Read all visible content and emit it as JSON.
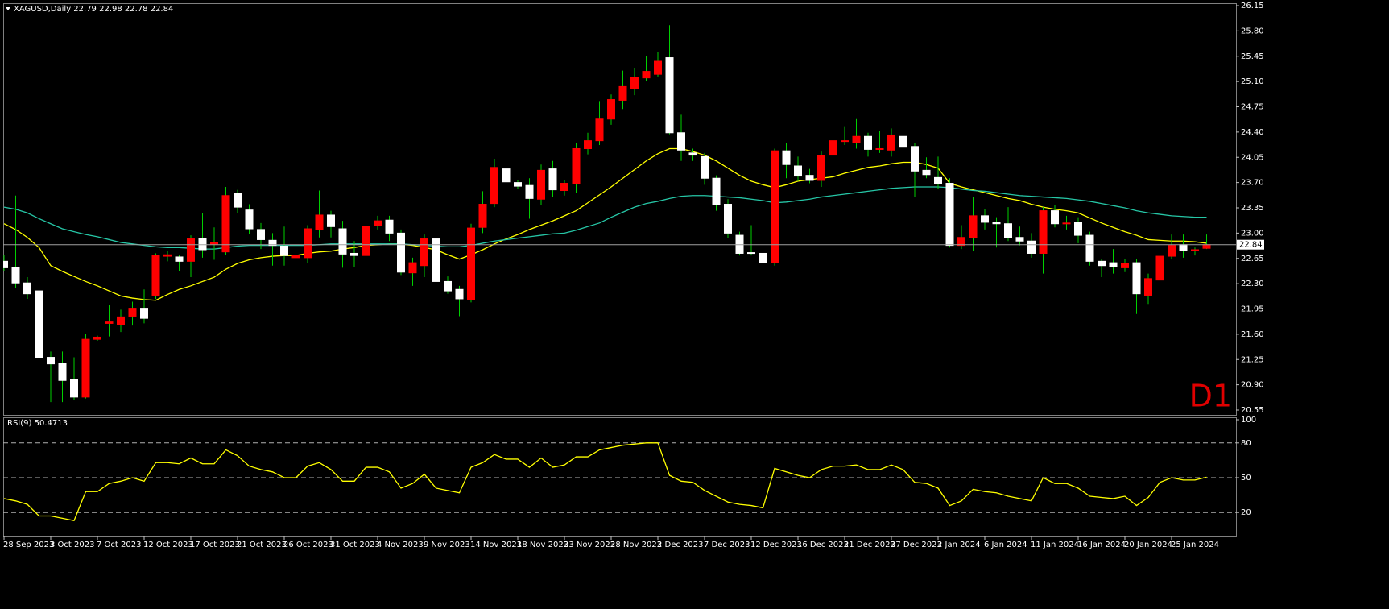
{
  "chart_data": [
    {
      "type": "candlestick",
      "title": "XAGUSD,Daily  22.79 22.98 22.78 22.84",
      "annotation": "D1",
      "categories": [
        "28 Sep 2023",
        null,
        null,
        null,
        "3 Oct 2023",
        null,
        null,
        null,
        "7 Oct 2023",
        null,
        null,
        null,
        "12 Oct 2023",
        null,
        null,
        null,
        "17 Oct 2023",
        null,
        null,
        null,
        "21 Oct 2023",
        null,
        null,
        null,
        "26 Oct 2023",
        null,
        null,
        null,
        "31 Oct 2023",
        null,
        null,
        null,
        "4 Nov 2023",
        null,
        null,
        null,
        "9 Nov 2023",
        null,
        null,
        null,
        "14 Nov 2023",
        null,
        null,
        null,
        "18 Nov 2023",
        null,
        null,
        null,
        "23 Nov 2023",
        null,
        null,
        null,
        "28 Nov 2023",
        null,
        null,
        null,
        "2 Dec 2023",
        null,
        null,
        null,
        "7 Dec 2023",
        null,
        null,
        null,
        "12 Dec 2023",
        null,
        null,
        null,
        "16 Dec 2023",
        null,
        null,
        null,
        "21 Dec 2023",
        null,
        null,
        null,
        "27 Dec 2023",
        null,
        null,
        null,
        "2 Jan 2024",
        null,
        null,
        null,
        "6 Jan 2024",
        null,
        null,
        null,
        "11 Jan 2024",
        null,
        null,
        null,
        "16 Jan 2024",
        null,
        null,
        null,
        "20 Jan 2024",
        null,
        null,
        null,
        "25 Jan 2024",
        null,
        null,
        null
      ],
      "open": [
        22.61,
        22.53,
        22.31,
        22.2,
        21.28,
        21.2,
        20.97,
        20.73,
        21.53,
        21.75,
        21.73,
        21.85,
        21.96,
        22.14,
        22.68,
        22.67,
        22.61,
        22.93,
        22.85,
        22.74,
        23.55,
        23.32,
        23.05,
        22.9,
        22.82,
        22.66,
        22.66,
        23.05,
        23.25,
        23.06,
        22.72,
        22.69,
        23.11,
        23.18,
        23.0,
        22.45,
        22.55,
        22.92,
        22.33,
        22.22,
        22.08,
        23.08,
        23.41,
        23.89,
        23.7,
        23.66,
        23.47,
        23.89,
        23.59,
        23.69,
        24.17,
        24.28,
        24.58,
        24.84,
        25.0,
        25.15,
        25.2,
        25.43,
        24.39,
        24.11,
        24.06,
        23.76,
        23.4,
        22.97,
        22.73,
        22.72,
        22.59,
        24.14,
        23.93,
        23.8,
        23.73,
        24.08,
        24.27,
        24.25,
        24.34,
        24.16,
        24.15,
        24.34,
        24.2,
        23.87,
        23.77,
        23.69,
        22.83,
        22.94,
        23.24,
        23.15,
        23.13,
        22.94,
        22.89,
        22.72,
        23.31,
        23.13,
        23.15,
        22.97,
        22.61,
        22.59,
        22.52,
        22.59,
        22.14,
        22.35,
        22.68,
        22.84,
        22.76,
        22.79
      ],
      "high": [
        22.7,
        23.52,
        22.39,
        22.22,
        21.36,
        21.36,
        21.28,
        21.61,
        21.58,
        22.0,
        21.94,
        22.05,
        22.22,
        22.72,
        22.75,
        22.7,
        22.97,
        23.28,
        23.08,
        23.64,
        23.6,
        23.4,
        23.14,
        23.0,
        23.09,
        22.89,
        23.11,
        23.59,
        23.31,
        23.17,
        22.89,
        23.19,
        23.24,
        23.24,
        23.05,
        22.66,
        22.98,
        22.98,
        22.4,
        22.27,
        23.13,
        23.58,
        24.03,
        24.11,
        23.73,
        23.76,
        23.95,
        24.0,
        23.74,
        24.25,
        24.39,
        24.83,
        24.92,
        25.25,
        25.29,
        25.45,
        25.51,
        25.88,
        24.64,
        24.17,
        24.11,
        23.8,
        23.47,
        23.02,
        23.11,
        22.89,
        24.17,
        24.25,
        24.06,
        23.89,
        24.13,
        24.39,
        24.47,
        24.58,
        24.39,
        24.41,
        24.45,
        24.47,
        24.25,
        24.05,
        24.06,
        23.76,
        23.11,
        23.5,
        23.33,
        23.22,
        23.36,
        23.09,
        23.0,
        23.36,
        23.39,
        23.24,
        23.22,
        23.02,
        22.64,
        22.78,
        22.64,
        22.64,
        22.44,
        22.75,
        22.98,
        22.98,
        22.8,
        22.98
      ],
      "low": [
        22.48,
        22.24,
        22.09,
        21.19,
        20.66,
        20.66,
        20.69,
        20.71,
        21.51,
        21.57,
        21.63,
        21.72,
        21.75,
        22.09,
        22.61,
        22.48,
        22.39,
        22.66,
        22.63,
        22.7,
        23.28,
        22.99,
        22.78,
        22.55,
        22.55,
        22.61,
        22.58,
        22.94,
        22.94,
        22.52,
        22.53,
        22.55,
        23.05,
        22.89,
        22.42,
        22.27,
        22.39,
        22.27,
        22.16,
        21.85,
        22.04,
        23.0,
        23.36,
        23.56,
        23.61,
        23.2,
        23.39,
        23.5,
        23.52,
        23.56,
        24.09,
        24.22,
        24.5,
        24.72,
        24.91,
        25.11,
        25.17,
        24.37,
        24.0,
        24.0,
        23.67,
        23.31,
        22.93,
        22.69,
        22.69,
        22.48,
        22.55,
        23.76,
        23.72,
        23.69,
        23.64,
        24.05,
        24.22,
        24.17,
        24.06,
        24.11,
        24.06,
        24.06,
        23.5,
        23.76,
        23.61,
        22.8,
        22.78,
        22.75,
        23.05,
        22.8,
        22.89,
        22.83,
        22.66,
        22.44,
        23.08,
        23.05,
        22.86,
        22.55,
        22.39,
        22.44,
        22.46,
        21.88,
        22.02,
        22.27,
        22.64,
        22.66,
        22.69,
        22.78
      ],
      "close": [
        22.52,
        22.31,
        22.16,
        21.27,
        21.19,
        20.96,
        20.73,
        21.53,
        21.56,
        21.77,
        21.84,
        21.96,
        21.82,
        22.69,
        22.7,
        22.61,
        22.92,
        22.77,
        22.87,
        23.52,
        23.36,
        23.06,
        22.91,
        22.83,
        22.69,
        22.69,
        23.06,
        23.25,
        23.09,
        22.71,
        22.69,
        23.09,
        23.17,
        23.0,
        22.46,
        22.59,
        22.92,
        22.33,
        22.2,
        22.09,
        23.07,
        23.4,
        23.91,
        23.71,
        23.65,
        23.48,
        23.87,
        23.6,
        23.69,
        24.17,
        24.28,
        24.58,
        24.85,
        25.03,
        25.16,
        25.24,
        25.38,
        24.39,
        24.15,
        24.08,
        23.76,
        23.4,
        23.0,
        22.72,
        22.72,
        22.59,
        24.14,
        23.95,
        23.79,
        23.73,
        24.08,
        24.28,
        24.28,
        24.34,
        24.16,
        24.17,
        24.36,
        24.19,
        23.86,
        23.81,
        23.69,
        22.83,
        22.94,
        23.24,
        23.15,
        23.13,
        22.94,
        22.89,
        22.72,
        23.31,
        23.13,
        23.14,
        22.97,
        22.61,
        22.55,
        22.53,
        22.58,
        22.16,
        22.37,
        22.68,
        22.83,
        22.76,
        22.77,
        22.84
      ],
      "up_color": "#ff0000",
      "down_color": "#ffffff",
      "wick_color": "#00d000",
      "series": [
        {
          "color": "#ffff00",
          "values": [
            23.13,
            23.05,
            22.94,
            22.8,
            22.55,
            22.47,
            22.4,
            22.33,
            22.27,
            22.2,
            22.13,
            22.1,
            22.08,
            22.07,
            22.15,
            22.22,
            22.27,
            22.33,
            22.39,
            22.5,
            22.58,
            22.63,
            22.66,
            22.68,
            22.69,
            22.69,
            22.72,
            22.74,
            22.75,
            22.78,
            22.8,
            22.83,
            22.84,
            22.85,
            22.85,
            22.83,
            22.8,
            22.77,
            22.7,
            22.64,
            22.7,
            22.77,
            22.85,
            22.92,
            22.98,
            23.05,
            23.11,
            23.17,
            23.24,
            23.31,
            23.42,
            23.53,
            23.64,
            23.76,
            23.88,
            24.0,
            24.1,
            24.17,
            24.17,
            24.13,
            24.08,
            24.0,
            23.9,
            23.8,
            23.72,
            23.67,
            23.63,
            23.67,
            23.72,
            23.74,
            23.76,
            23.78,
            23.83,
            23.87,
            23.91,
            23.93,
            23.96,
            23.98,
            23.98,
            23.95,
            23.9,
            23.69,
            23.64,
            23.6,
            23.56,
            23.52,
            23.48,
            23.45,
            23.4,
            23.36,
            23.33,
            23.31,
            23.28,
            23.21,
            23.14,
            23.08,
            23.02,
            22.97,
            22.91,
            22.9,
            22.89,
            22.89,
            22.88,
            22.86
          ]
        },
        {
          "color": "#26c6a6",
          "values": [
            23.36,
            23.33,
            23.28,
            23.2,
            23.13,
            23.06,
            23.02,
            22.98,
            22.95,
            22.91,
            22.87,
            22.85,
            22.83,
            22.81,
            22.8,
            22.8,
            22.79,
            22.78,
            22.78,
            22.8,
            22.82,
            22.83,
            22.83,
            22.83,
            22.83,
            22.83,
            22.83,
            22.84,
            22.85,
            22.85,
            22.85,
            22.85,
            22.85,
            22.85,
            22.85,
            22.84,
            22.83,
            22.82,
            22.81,
            22.81,
            22.83,
            22.86,
            22.89,
            22.91,
            22.93,
            22.95,
            22.97,
            22.99,
            23.0,
            23.04,
            23.09,
            23.14,
            23.22,
            23.29,
            23.36,
            23.41,
            23.44,
            23.48,
            23.51,
            23.52,
            23.52,
            23.51,
            23.5,
            23.49,
            23.47,
            23.45,
            23.42,
            23.43,
            23.45,
            23.47,
            23.5,
            23.52,
            23.54,
            23.56,
            23.58,
            23.6,
            23.62,
            23.63,
            23.64,
            23.64,
            23.64,
            23.63,
            23.61,
            23.59,
            23.58,
            23.56,
            23.54,
            23.52,
            23.51,
            23.5,
            23.49,
            23.48,
            23.46,
            23.44,
            23.41,
            23.38,
            23.35,
            23.31,
            23.28,
            23.26,
            23.24,
            23.23,
            23.22,
            23.22
          ]
        }
      ],
      "last_price": 22.84,
      "ylim": [
        20.55,
        26.15
      ],
      "yticks": [
        26.15,
        {
          "value": 25.8,
          "label": "25.80"
        },
        25.45,
        {
          "value": 25.1,
          "label": "25.10"
        },
        24.75,
        {
          "value": 24.4,
          "label": "24.40"
        },
        24.05,
        {
          "value": 23.7,
          "label": "23.70"
        },
        23.35,
        {
          "value": 23,
          "label": "23.00"
        },
        22.65,
        {
          "value": 22.3,
          "label": "22.30"
        },
        21.95,
        {
          "value": 21.6,
          "label": "21.60"
        },
        21.25,
        {
          "value": 20.9,
          "label": "20.90"
        },
        20.55
      ],
      "grid": false
    },
    {
      "type": "line",
      "title": "RSI(9) 50.4713",
      "series": [
        {
          "color": "#ffff00",
          "values": [
            32,
            30,
            27,
            17,
            17,
            15,
            13,
            38,
            38,
            45,
            47,
            50,
            47,
            63,
            63,
            62,
            67,
            62,
            62,
            74,
            69,
            60,
            57,
            55,
            50,
            50,
            60,
            63,
            57,
            47,
            47,
            59,
            59,
            55,
            41,
            45,
            53,
            41,
            39,
            37,
            59,
            63,
            70,
            66,
            66,
            59,
            67,
            59,
            61,
            68,
            68,
            74,
            76,
            78,
            79,
            80,
            80,
            52,
            47,
            46,
            39,
            34,
            29,
            27,
            26,
            24,
            58,
            55,
            52,
            50,
            57,
            60,
            60,
            61,
            57,
            57,
            61,
            57,
            46,
            45,
            41,
            26,
            30,
            40,
            38,
            37,
            34,
            32,
            30,
            50,
            45,
            45,
            41,
            34,
            33,
            32,
            34,
            26,
            33,
            46,
            50,
            48,
            48,
            50.4713
          ]
        }
      ],
      "ylim": [
        0,
        100
      ],
      "yticks": [
        100,
        80,
        50,
        20
      ],
      "grid": true
    }
  ]
}
